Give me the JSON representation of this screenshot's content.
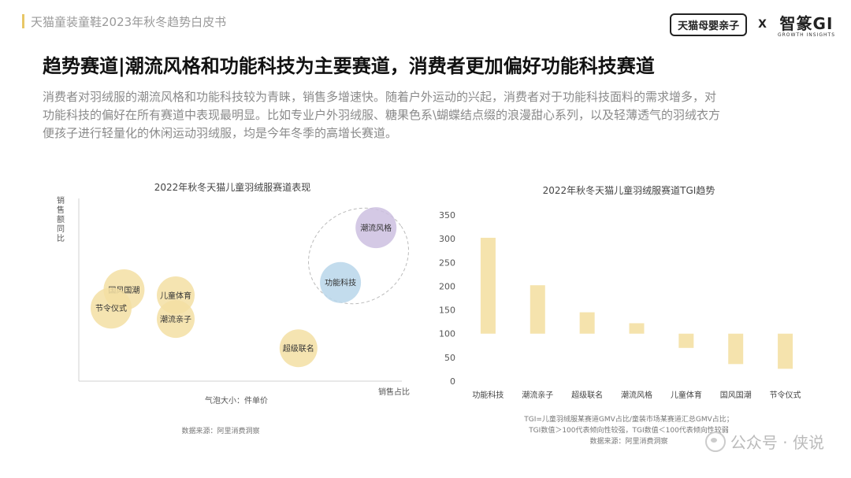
{
  "header": {
    "doc_title": "天猫童装童鞋2023年秋冬趋势白皮书",
    "logo_tmall": "天猫母婴亲子",
    "logo_separator": "X",
    "logo_zz": "智篆GI",
    "logo_zz_sub": "GROWTH INSIGHTS"
  },
  "headline": "趋势赛道|潮流风格和功能科技为主要赛道，消费者更加偏好功能科技赛道",
  "description": [
    "消费者对羽绒服的潮流风格和功能科技较为青睐，销售多增速快。随着户外运动的兴起，消费者对于功能科技面料的需求增多，对",
    "功能科技的偏好在所有赛道中表现最明显。比如专业户外羽绒服、糖果色系\\蝴蝶结点缀的浪漫甜心系列，以及轻薄透气的羽绒衣方",
    "便孩子进行轻量化的休闲运动羽绒服，均是今年冬季的高增长赛道。"
  ],
  "chart_data": [
    {
      "type": "scatter",
      "title": "2022年秋冬天猫儿童羽绒服赛道表现",
      "xlabel": "销售占比",
      "ylabel": "销售额同比",
      "size_label": "气泡大小：件单价",
      "source": "数据来源：阿里消费洞察",
      "xlim": [
        0,
        100
      ],
      "ylim": [
        0,
        100
      ],
      "points": [
        {
          "label": "国风国潮",
          "x": 14,
          "y": 50,
          "size": 26,
          "color": "#f3dfa3"
        },
        {
          "label": "节令仪式",
          "x": 10,
          "y": 40,
          "size": 26,
          "color": "#f3dfa3"
        },
        {
          "label": "儿童体育",
          "x": 30,
          "y": 47,
          "size": 24,
          "color": "#f3dfa3"
        },
        {
          "label": "潮流亲子",
          "x": 30,
          "y": 34,
          "size": 24,
          "color": "#f3dfa3"
        },
        {
          "label": "超级联名",
          "x": 68,
          "y": 18,
          "size": 24,
          "color": "#f3dfa3"
        },
        {
          "label": "功能科技",
          "x": 81,
          "y": 54,
          "size": 26,
          "color": "#b9d6ea"
        },
        {
          "label": "潮流风格",
          "x": 92,
          "y": 84,
          "size": 26,
          "color": "#cdbfe0"
        }
      ],
      "highlight": "dashed ellipse around 功能科技 and 潮流风格"
    },
    {
      "type": "bar",
      "title": "2022年秋冬天猫儿童羽绒服赛道TGI趋势",
      "categories": [
        "功能科技",
        "潮流亲子",
        "超级联名",
        "潮流风格",
        "儿童体育",
        "国风国潮",
        "节令仪式"
      ],
      "values": [
        302,
        202,
        145,
        122,
        70,
        36,
        26
      ],
      "baseline": 100,
      "ylim": [
        0,
        350
      ],
      "yticks": [
        0,
        50,
        100,
        150,
        200,
        250,
        300,
        350
      ],
      "bar_color": "#f5e3ad",
      "notes": [
        "TGI=儿童羽绒服某赛道GMV占比/童装市场某赛道汇总GMV占比；",
        "TGI数值＞100代表倾向性较强，TGI数值＜100代表倾向性较弱",
        "数据来源：阿里消费洞察"
      ]
    }
  ],
  "watermark": "公众号 · 侠说"
}
